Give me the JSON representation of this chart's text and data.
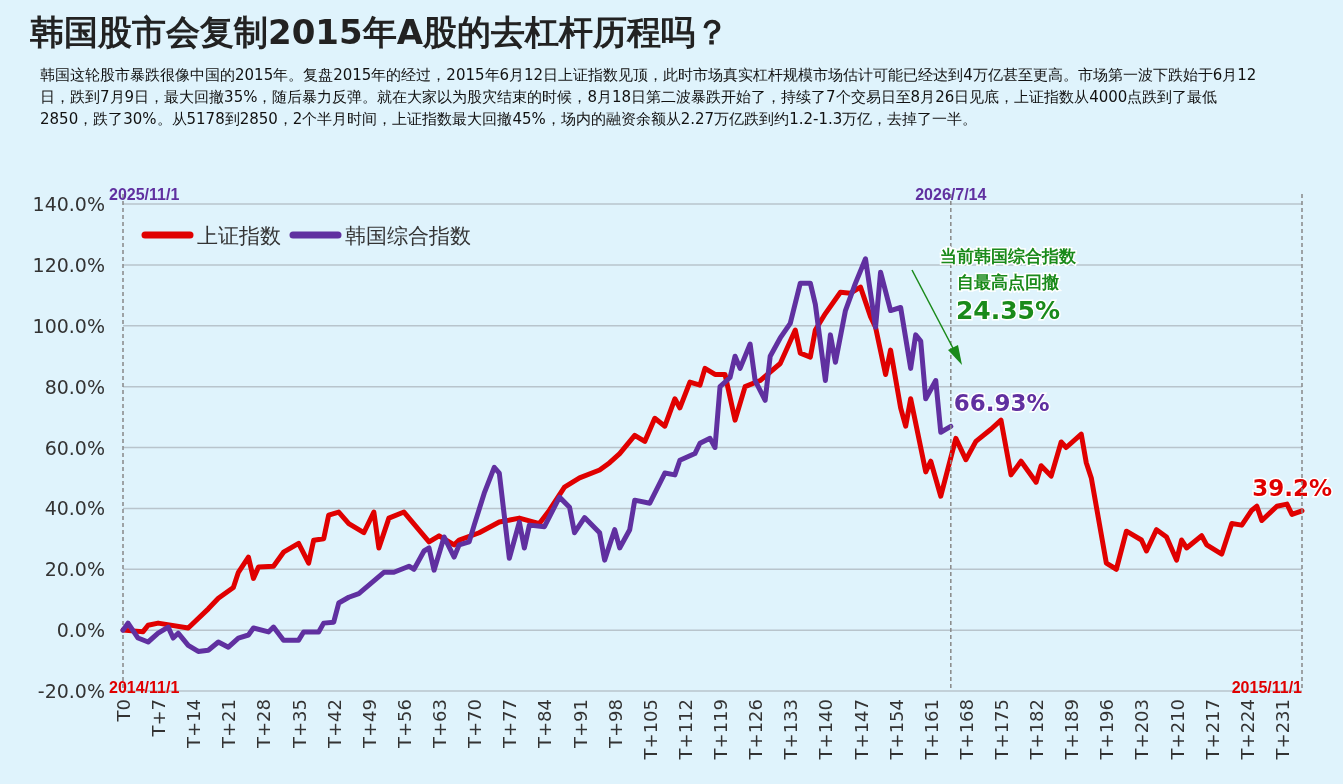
{
  "chart_data": {
    "type": "line",
    "title": "韩国股市会复制2015年A股的去杠杆历程吗？",
    "subtitle": "韩国这轮股市暴跌很像中国的2015年。复盘2015年的经过，2015年6月12日上证指数见顶，此时市场真实杠杆规模市场估计可能已经达到4万亿甚至更高。市场第一波下跌始于6月12日，跌到7月9日，最大回撤35%，随后暴力反弹。就在大家以为股灾结束的时候，8月18日第二波暴跌开始了，持续了7个交易日至8月26日见底，上证指数从4000点跌到了最低2850，跌了30%。从5178到2850，2个半月时间，上证指数最大回撤45%，场内的融资余额从2.27万亿跌到约1.2-1.3万亿，去掉了一半。",
    "annotations": [
      "2025/11/1",
      "2014/11/1",
      "2026/7/14",
      "2015/11/1",
      "当前韩国综合指数",
      "自最高点回撤",
      "24.35%"
    ],
    "categories": [
      "T0",
      null,
      null,
      null,
      null,
      null,
      null,
      "T+7",
      null,
      null,
      null,
      null,
      null,
      null,
      "T+14",
      null,
      null,
      null,
      null,
      null,
      null,
      "T+21",
      null,
      null,
      null,
      null,
      null,
      null,
      "T+28",
      null,
      null,
      null,
      null,
      null,
      null,
      "T+35",
      null,
      null,
      null,
      null,
      null,
      null,
      "T+42",
      null,
      null,
      null,
      null,
      null,
      null,
      "T+49",
      null,
      null,
      null,
      null,
      null,
      null,
      "T+56",
      null,
      null,
      null,
      null,
      null,
      null,
      "T+63",
      null,
      null,
      null,
      null,
      null,
      null,
      "T+70",
      null,
      null,
      null,
      null,
      null,
      null,
      "T+77",
      null,
      null,
      null,
      null,
      null,
      null,
      "T+84",
      null,
      null,
      null,
      null,
      null,
      null,
      "T+91",
      null,
      null,
      null,
      null,
      null,
      null,
      "T+98",
      null,
      null,
      null,
      null,
      null,
      null,
      "T+105",
      null,
      null,
      null,
      null,
      null,
      null,
      "T+112",
      null,
      null,
      null,
      null,
      null,
      null,
      "T+119",
      null,
      null,
      null,
      null,
      null,
      null,
      "T+126",
      null,
      null,
      null,
      null,
      null,
      null,
      "T+133",
      null,
      null,
      null,
      null,
      null,
      null,
      "T+140",
      null,
      null,
      null,
      null,
      null,
      null,
      "T+147",
      null,
      null,
      null,
      null,
      null,
      null,
      "T+154",
      null,
      null,
      null,
      null,
      null,
      null,
      "T+161",
      null,
      null,
      null,
      null,
      null,
      null,
      "T+168",
      null,
      null,
      null,
      null,
      null,
      null,
      "T+175",
      null,
      null,
      null,
      null,
      null,
      null,
      "T+182",
      null,
      null,
      null,
      null,
      null,
      null,
      "T+189",
      null,
      null,
      null,
      null,
      null,
      null,
      "T+196",
      null,
      null,
      null,
      null,
      null,
      null,
      "T+203",
      null,
      null,
      null,
      null,
      null,
      null,
      "T+210",
      null,
      null,
      null,
      null,
      null,
      null,
      "T+217",
      null,
      null,
      null,
      null,
      null,
      null,
      "T+224",
      null,
      null,
      null,
      null,
      null,
      null,
      "T+231",
      null,
      null,
      null,
      null
    ],
    "series": [
      {
        "name": "上证指数",
        "color": "#e00000",
        "values": [
          0,
          null,
          null,
          null,
          -0.5,
          1.6,
          null,
          2.3,
          null,
          null,
          null,
          null,
          null,
          0.7,
          null,
          null,
          null,
          7,
          null,
          10.5,
          null,
          null,
          14,
          19,
          null,
          24,
          17,
          20.7,
          null,
          null,
          21,
          null,
          25.6,
          null,
          null,
          28.5,
          null,
          22,
          29.5,
          null,
          30,
          37.8,
          null,
          38.8,
          null,
          35,
          null,
          null,
          32,
          null,
          38.8,
          27,
          null,
          36.8,
          null,
          null,
          38.8,
          null,
          null,
          null,
          null,
          29,
          null,
          31,
          null,
          null,
          28,
          29.6,
          null,
          null,
          null,
          32,
          null,
          null,
          null,
          35.5,
          null,
          null,
          null,
          36.8,
          null,
          null,
          null,
          35,
          null,
          39.4,
          null,
          null,
          47,
          null,
          null,
          50,
          null,
          null,
          null,
          52.6,
          null,
          55,
          null,
          58,
          null,
          null,
          64,
          null,
          62,
          null,
          69.6,
          null,
          67,
          null,
          76,
          73,
          null,
          81.5,
          null,
          80.5,
          86,
          null,
          84,
          null,
          84,
          null,
          69,
          null,
          80,
          null,
          null,
          82,
          null,
          null,
          null,
          87.6,
          null,
          null,
          98.6,
          91,
          null,
          89.7,
          98.6,
          null,
          104,
          null,
          null,
          111,
          null,
          110.7,
          null,
          112.7,
          null,
          103,
          99.5,
          null,
          84,
          92,
          null,
          73,
          67,
          76,
          null,
          null,
          52,
          55.5,
          null,
          44,
          null,
          null,
          63,
          null,
          56,
          null,
          62,
          null,
          null,
          66,
          null,
          69,
          null,
          51,
          null,
          55.5,
          null,
          null,
          48.6,
          54,
          null,
          50.6,
          null,
          61.8,
          60,
          null,
          null,
          64.4,
          55,
          50,
          null,
          null,
          22,
          null,
          20,
          null,
          32.5,
          null,
          null,
          29.6,
          26,
          null,
          33,
          null,
          30.6,
          null,
          23,
          29.6,
          27,
          null,
          null,
          31,
          28,
          null,
          null,
          25,
          null,
          35,
          null,
          34.5,
          null,
          39.4,
          40.7,
          36,
          null,
          null,
          40.7,
          null,
          41.4,
          38,
          null,
          39.2
        ],
        "value_labels": [
          null,
          null,
          null,
          null,
          null,
          null,
          null,
          null,
          null,
          null,
          null,
          null,
          null,
          null,
          null,
          null,
          null,
          null,
          null,
          null,
          null,
          null,
          null,
          null,
          null,
          null,
          null,
          null,
          null,
          null,
          null,
          null,
          null,
          null,
          null,
          null,
          null,
          null,
          null,
          null,
          null,
          null,
          null,
          null,
          null,
          null,
          null,
          null,
          null,
          null,
          null,
          null,
          null,
          null,
          null,
          null,
          null,
          null,
          null,
          null,
          null,
          null,
          null,
          null,
          null,
          null,
          null,
          null,
          null,
          null,
          null,
          null,
          null,
          null,
          null,
          null,
          null,
          null,
          null,
          null,
          null,
          null,
          null,
          null,
          null,
          null,
          null,
          null,
          null,
          null,
          null,
          null,
          null,
          null,
          null,
          null,
          null,
          null,
          null,
          null,
          null,
          null,
          null,
          null,
          null,
          null,
          null,
          null,
          null,
          null,
          null,
          null,
          null,
          null,
          null,
          null,
          null,
          null,
          null,
          null,
          null,
          null,
          null,
          null,
          null,
          null,
          null,
          null,
          null,
          null,
          null,
          null,
          null,
          null,
          null,
          null,
          null,
          null,
          null,
          null,
          null,
          null,
          null,
          null,
          null,
          null,
          null,
          null,
          null,
          null,
          null,
          null,
          null,
          null,
          null,
          null,
          null,
          null,
          null,
          null,
          null,
          null,
          null,
          null,
          null,
          null,
          null,
          null,
          null,
          null,
          null,
          null,
          null,
          null,
          null,
          null,
          null,
          null,
          null,
          null,
          null,
          null,
          null,
          null,
          null,
          null,
          null,
          null,
          null,
          null,
          null,
          null,
          null,
          null,
          null,
          null,
          null,
          null,
          null,
          null,
          null,
          null,
          null,
          null,
          null,
          null,
          null,
          null,
          null,
          null,
          null,
          null,
          null,
          null,
          null,
          null,
          null,
          null,
          null,
          null,
          null,
          null,
          null,
          null,
          null,
          null,
          null,
          null,
          null,
          null,
          null,
          null,
          null,
          null,
          null,
          "39.2%"
        ]
      },
      {
        "name": "韩国综合指数",
        "color": "#6030a0",
        "values": [
          0,
          2.3,
          null,
          -2.6,
          null,
          -3.9,
          null,
          -1,
          null,
          1,
          -2.6,
          -1,
          null,
          -5,
          null,
          -7,
          null,
          -6.6,
          null,
          -3.9,
          null,
          -5.6,
          null,
          -2.6,
          null,
          -1.6,
          0.7,
          null,
          null,
          -0.6,
          1,
          null,
          -3.3,
          null,
          null,
          -3.3,
          -0.6,
          null,
          null,
          -0.6,
          2.3,
          null,
          2.6,
          8.9,
          null,
          10.8,
          null,
          12,
          null,
          14.8,
          null,
          null,
          19,
          null,
          19,
          null,
          null,
          21,
          20,
          null,
          26,
          27,
          19.7,
          null,
          30.6,
          null,
          24,
          28,
          null,
          29,
          34.5,
          null,
          45,
          null,
          53.5,
          51.6,
          null,
          23.6,
          null,
          35.5,
          27,
          34.5,
          null,
          null,
          34,
          null,
          null,
          43.7,
          null,
          40.4,
          32,
          null,
          37,
          null,
          null,
          32,
          23,
          null,
          33,
          27,
          null,
          33,
          42.7,
          null,
          null,
          41.7,
          null,
          null,
          51.6,
          null,
          51,
          55.8,
          null,
          null,
          58,
          61.4,
          null,
          63,
          60,
          80,
          null,
          83,
          90,
          86,
          null,
          94,
          82,
          null,
          75.5,
          90,
          null,
          96,
          null,
          100.8,
          null,
          114,
          null,
          114,
          107,
          null,
          82,
          97,
          88,
          null,
          105,
          null,
          114,
          null,
          122,
          null,
          99.5,
          117.6,
          null,
          105,
          null,
          106,
          null,
          86,
          97,
          95,
          76,
          null,
          82,
          65,
          null,
          66.93,
          null,
          null,
          null,
          null,
          null,
          null,
          null,
          null,
          null,
          null,
          null,
          null,
          null,
          null,
          null,
          null,
          null,
          null,
          null,
          null,
          null,
          null,
          null,
          null,
          null,
          null,
          null,
          null,
          null,
          null,
          null,
          null,
          null,
          null,
          null,
          null,
          null,
          null,
          null,
          null,
          null,
          null,
          null,
          null,
          null,
          null,
          null,
          null,
          null,
          null,
          null,
          null,
          null,
          null,
          null,
          null,
          null,
          null,
          null,
          null,
          null,
          null,
          null,
          null,
          null,
          null,
          null,
          null,
          null,
          null
        ],
        "value_labels": [
          null,
          null,
          null,
          null,
          null,
          null,
          null,
          null,
          null,
          null,
          null,
          null,
          null,
          null,
          null,
          null,
          null,
          null,
          null,
          null,
          null,
          null,
          null,
          null,
          null,
          null,
          null,
          null,
          null,
          null,
          null,
          null,
          null,
          null,
          null,
          null,
          null,
          null,
          null,
          null,
          null,
          null,
          null,
          null,
          null,
          null,
          null,
          null,
          null,
          null,
          null,
          null,
          null,
          null,
          null,
          null,
          null,
          null,
          null,
          null,
          null,
          null,
          null,
          null,
          null,
          null,
          null,
          null,
          null,
          null,
          null,
          null,
          null,
          null,
          null,
          null,
          null,
          null,
          null,
          null,
          null,
          null,
          null,
          null,
          null,
          null,
          null,
          null,
          null,
          null,
          null,
          null,
          null,
          null,
          null,
          null,
          null,
          null,
          null,
          null,
          null,
          null,
          null,
          null,
          null,
          null,
          null,
          null,
          null,
          null,
          null,
          null,
          null,
          null,
          null,
          null,
          null,
          null,
          null,
          null,
          null,
          null,
          null,
          null,
          null,
          null,
          null,
          null,
          null,
          null,
          null,
          null,
          null,
          null,
          null,
          null,
          null,
          null,
          null,
          null,
          null,
          null,
          null,
          null,
          null,
          null,
          null,
          null,
          null,
          null,
          null,
          null,
          null,
          null,
          null,
          null,
          null,
          null,
          null,
          null,
          null,
          null,
          null,
          null,
          null,
          "66.93%",
          null,
          null,
          null,
          null,
          null,
          null,
          null,
          null,
          null,
          null,
          null,
          null,
          null,
          null,
          null,
          null,
          null,
          null,
          null,
          null,
          null,
          null,
          null,
          null,
          null,
          null,
          null,
          null,
          null,
          null,
          null,
          null,
          null,
          null,
          null,
          null,
          null,
          null,
          null,
          null,
          null,
          null,
          null,
          null,
          null,
          null,
          null,
          null,
          null,
          null,
          null,
          null,
          null,
          null,
          null,
          null,
          null,
          null,
          null,
          null,
          null,
          null,
          null,
          null,
          null,
          null,
          null,
          null,
          null,
          null
        ]
      }
    ],
    "ylim": [
      -20,
      140
    ],
    "yticks": [
      {
        "value": -20,
        "label": "-20.0%"
      },
      {
        "value": 0,
        "label": "0.0%"
      },
      {
        "value": 20,
        "label": "20.0%"
      },
      {
        "value": 40,
        "label": "40.0%"
      },
      {
        "value": 60,
        "label": "60.0%"
      },
      {
        "value": 80,
        "label": "80.0%"
      },
      {
        "value": 100,
        "label": "100.0%"
      },
      {
        "value": 120,
        "label": "120.0%"
      },
      {
        "value": 140,
        "label": "140.0%"
      }
    ],
    "ref_lines": [
      {
        "axis": "x",
        "value": "T0",
        "color": "#888888",
        "line_style": "dashed"
      }
    ],
    "grid": "y",
    "legend": "top left",
    "marker": "none",
    "line_style": "solid"
  }
}
